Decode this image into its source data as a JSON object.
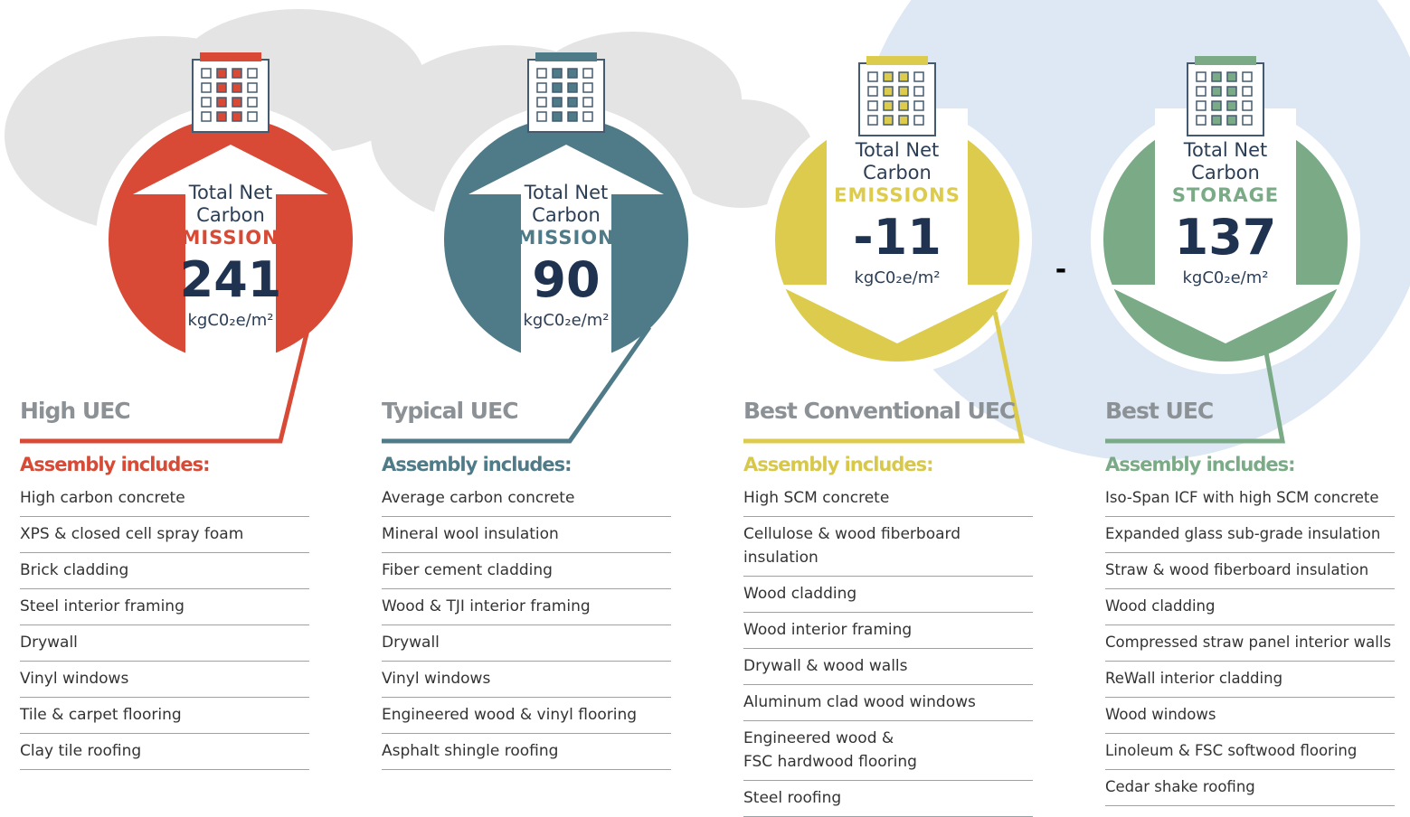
{
  "columns": [
    {
      "label_lines": [
        "Total Net",
        "Carbon"
      ],
      "kind": "EMISSIONS",
      "value": 241,
      "unit": "kgC0₂e/m²",
      "heading": "High UEC",
      "assembly_title": "Assembly includes:",
      "items": [
        "High carbon concrete",
        "XPS & closed cell spray foam",
        "Brick cladding",
        "Steel interior framing",
        "Drywall",
        "Vinyl windows",
        "Tile & carpet flooring",
        "Clay tile roofing"
      ]
    },
    {
      "label_lines": [
        "Total Net",
        "Carbon"
      ],
      "kind": "EMISSIONS",
      "value": 90,
      "unit": "kgC0₂e/m²",
      "heading": "Typical UEC",
      "assembly_title": "Assembly includes:",
      "items": [
        "Average carbon concrete",
        "Mineral wool insulation",
        "Fiber cement cladding",
        "Wood & TJI interior framing",
        "Drywall",
        "Vinyl windows",
        "Engineered wood & vinyl flooring",
        "Asphalt shingle roofing"
      ]
    },
    {
      "label_lines": [
        "Total Net",
        "Carbon"
      ],
      "kind": "EMISSIONS",
      "value": -11,
      "unit": "kgC0₂e/m²",
      "heading": "Best Conventional UEC",
      "assembly_title": "Assembly includes:",
      "items": [
        "High SCM concrete",
        "Cellulose & wood fiberboard\ninsulation",
        "Wood cladding",
        "Wood interior framing",
        "Drywall & wood walls",
        "Aluminum clad wood windows",
        "Engineered wood &\nFSC hardwood flooring",
        "Steel roofing"
      ]
    },
    {
      "label_lines": [
        "Total Net",
        "Carbon"
      ],
      "kind": "STORAGE",
      "value": 137,
      "unit": "kgC0₂e/m²",
      "heading": "Best UEC",
      "assembly_title": "Assembly includes:",
      "items": [
        "Iso-Span ICF with high SCM concrete",
        "Expanded glass sub-grade insulation",
        "Straw & wood fiberboard insulation",
        "Wood cladding",
        "Compressed straw panel interior walls",
        "ReWall interior cladding",
        "Wood windows",
        "Linoleum & FSC softwood flooring",
        "Cedar shake roofing"
      ]
    }
  ],
  "separator": "-"
}
